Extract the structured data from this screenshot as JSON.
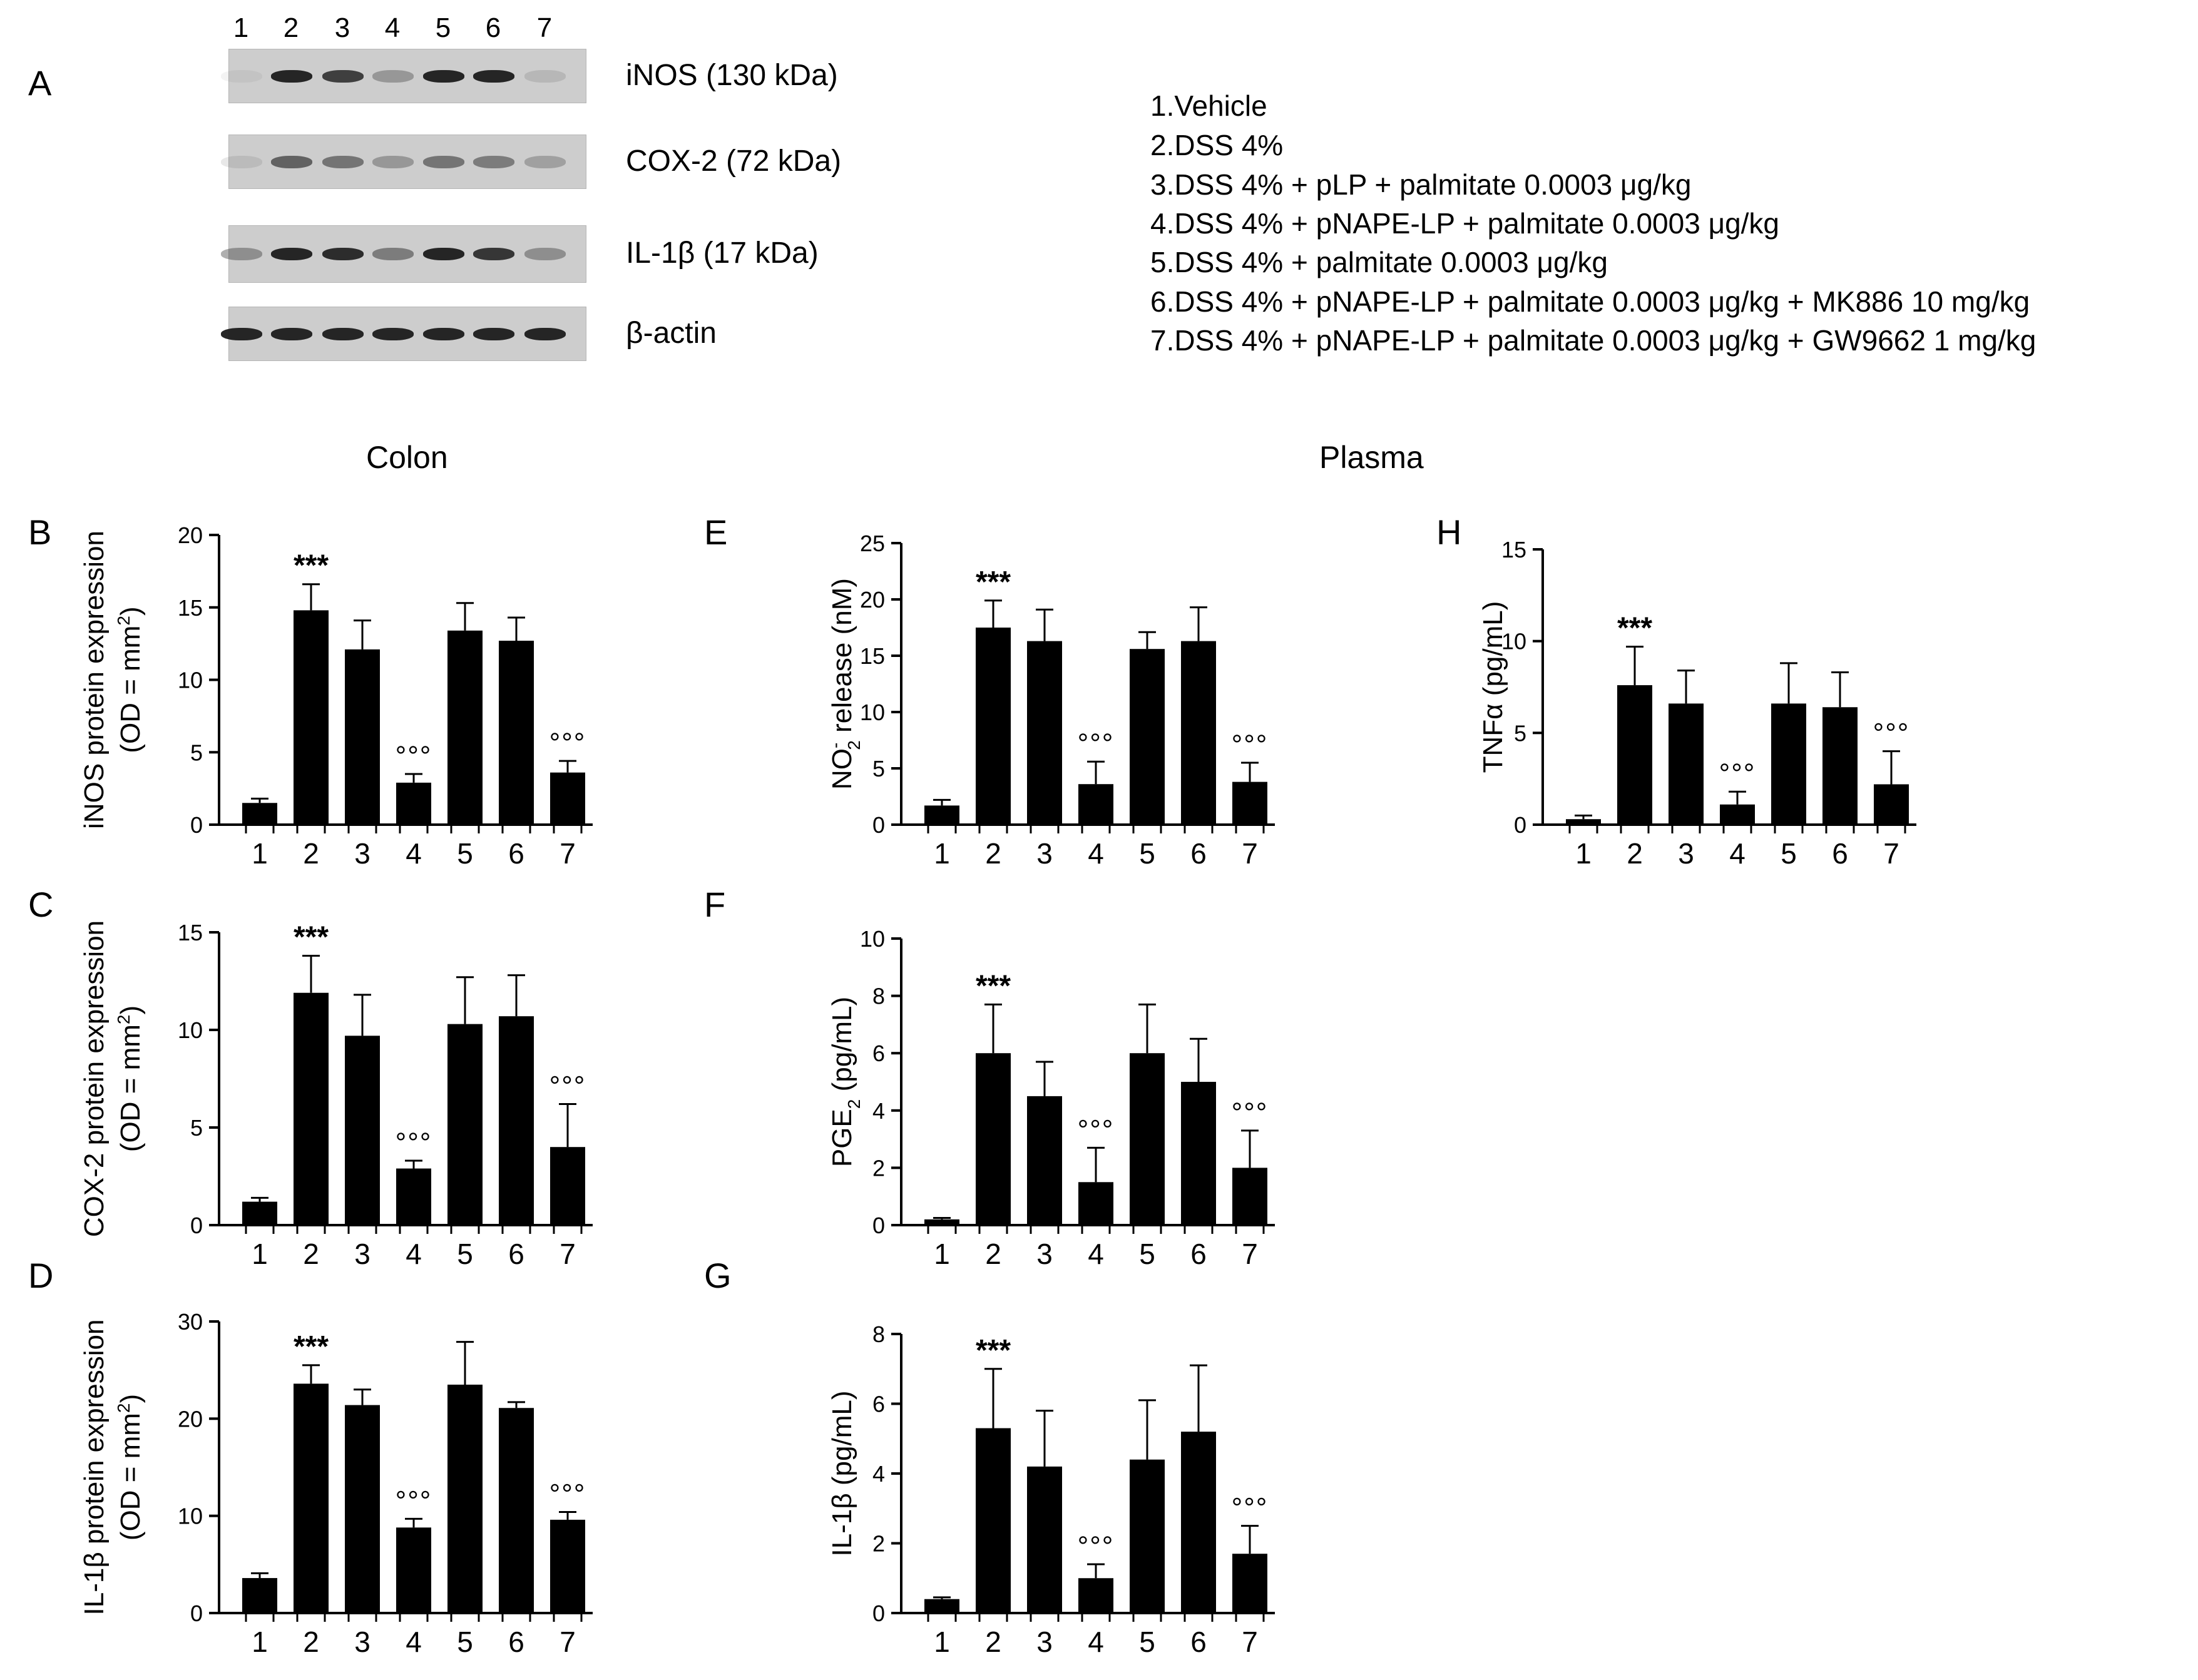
{
  "panel_a": {
    "letter": "A",
    "lanes": [
      "1",
      "2",
      "3",
      "4",
      "5",
      "6",
      "7"
    ],
    "blots": [
      {
        "label": "iNOS (130 kDa)",
        "intensity": [
          0.05,
          0.95,
          0.8,
          0.3,
          0.95,
          0.95,
          0.12
        ]
      },
      {
        "label": "COX-2 (72 kDa)",
        "intensity": [
          0.1,
          0.6,
          0.5,
          0.3,
          0.5,
          0.45,
          0.25
        ]
      },
      {
        "label": "IL-1β (17 kDa)",
        "intensity": [
          0.35,
          0.95,
          0.9,
          0.45,
          0.95,
          0.85,
          0.35
        ]
      },
      {
        "label": "β-actin",
        "intensity": [
          0.95,
          0.95,
          0.95,
          0.95,
          0.95,
          0.95,
          0.95
        ]
      }
    ],
    "legend": [
      "1.Vehicle",
      "2.DSS 4%",
      "3.DSS 4%  + pLP + palmitate 0.0003 μg/kg",
      "4.DSS 4%  + pNAPE-LP + palmitate 0.0003 μg/kg",
      "5.DSS 4%  + palmitate 0.0003 μg/kg",
      "6.DSS 4%  + pNAPE-LP + palmitate 0.0003 μg/kg + MK886  10 mg/kg",
      "7.DSS 4%  + pNAPE-LP + palmitate 0.0003 μg/kg + GW9662 1 mg/kg"
    ]
  },
  "sections": {
    "colon": "Colon",
    "plasma": "Plasma"
  },
  "chart_data": [
    {
      "panel": "B",
      "type": "bar",
      "categories": [
        "1",
        "2",
        "3",
        "4",
        "5",
        "6",
        "7"
      ],
      "values": [
        1.5,
        14.8,
        12.1,
        2.9,
        13.4,
        12.7,
        3.6
      ],
      "errors": [
        0.3,
        1.8,
        2.0,
        0.6,
        1.9,
        1.6,
        0.8
      ],
      "annotations": [
        "",
        "***",
        "",
        "°°°",
        "",
        "",
        "°°°"
      ],
      "ylabel_line1": "iNOS protein expression",
      "ylabel_line2": "(OD = mm",
      "ylabel_sup": "2",
      "ylabel_tail": ")",
      "ylim": [
        0,
        20
      ],
      "yticks": [
        0,
        5,
        10,
        15,
        20
      ]
    },
    {
      "panel": "C",
      "type": "bar",
      "categories": [
        "1",
        "2",
        "3",
        "4",
        "5",
        "6",
        "7"
      ],
      "values": [
        1.2,
        11.9,
        9.7,
        2.9,
        10.3,
        10.7,
        4.0
      ],
      "errors": [
        0.2,
        1.9,
        2.1,
        0.4,
        2.4,
        2.1,
        2.2
      ],
      "annotations": [
        "",
        "***",
        "",
        "°°°",
        "",
        "",
        "°°°"
      ],
      "ylabel_line1": "COX-2 protein expression",
      "ylabel_line2": "(OD = mm",
      "ylabel_sup": "2",
      "ylabel_tail": ")",
      "ylim": [
        0,
        15
      ],
      "yticks": [
        0,
        5,
        10,
        15
      ]
    },
    {
      "panel": "D",
      "type": "bar",
      "categories": [
        "1",
        "2",
        "3",
        "4",
        "5",
        "6",
        "7"
      ],
      "values": [
        3.6,
        23.6,
        21.4,
        8.8,
        23.5,
        21.1,
        9.6
      ],
      "errors": [
        0.5,
        1.9,
        1.6,
        0.9,
        4.4,
        0.6,
        0.8
      ],
      "annotations": [
        "",
        "***",
        "",
        "°°°",
        "",
        "",
        "°°°"
      ],
      "ylabel_line1": "IL-1β protein expression",
      "ylabel_line2": "(OD = mm",
      "ylabel_sup": "2",
      "ylabel_tail": ")",
      "ylim": [
        0,
        30
      ],
      "yticks": [
        0,
        10,
        20,
        30
      ]
    },
    {
      "panel": "E",
      "type": "bar",
      "categories": [
        "1",
        "2",
        "3",
        "4",
        "5",
        "6",
        "7"
      ],
      "values": [
        1.7,
        17.5,
        16.3,
        3.6,
        15.6,
        16.3,
        3.8
      ],
      "errors": [
        0.5,
        2.4,
        2.8,
        2.0,
        1.5,
        3.0,
        1.7
      ],
      "annotations": [
        "",
        "***",
        "",
        "°°°",
        "",
        "",
        "°°°"
      ],
      "ylabel_line1": "NO",
      "ylabel_sub": "2",
      "ylabel_supm": "-",
      "ylabel_tail": " release (nM)",
      "ylim": [
        0,
        25
      ],
      "yticks": [
        0,
        5,
        10,
        15,
        20,
        25
      ]
    },
    {
      "panel": "F",
      "type": "bar",
      "categories": [
        "1",
        "2",
        "3",
        "4",
        "5",
        "6",
        "7"
      ],
      "values": [
        0.2,
        6.0,
        4.5,
        1.5,
        6.0,
        5.0,
        2.0
      ],
      "errors": [
        0.05,
        1.7,
        1.2,
        1.2,
        1.7,
        1.5,
        1.3
      ],
      "annotations": [
        "",
        "***",
        "",
        "°°°",
        "",
        "",
        "°°°"
      ],
      "ylabel_line1": "PGE",
      "ylabel_sub": "2",
      "ylabel_tail": " (pg/mL)",
      "ylim": [
        0,
        10
      ],
      "yticks": [
        0,
        2,
        4,
        6,
        8,
        10
      ]
    },
    {
      "panel": "G",
      "type": "bar",
      "categories": [
        "1",
        "2",
        "3",
        "4",
        "5",
        "6",
        "7"
      ],
      "values": [
        0.4,
        5.3,
        4.2,
        1.0,
        4.4,
        5.2,
        1.7
      ],
      "errors": [
        0.05,
        1.7,
        1.6,
        0.4,
        1.7,
        1.9,
        0.8
      ],
      "annotations": [
        "",
        "***",
        "",
        "°°°",
        "",
        "",
        "°°°"
      ],
      "ylabel_line1": "IL-1β (pg/mL)",
      "ylim": [
        0,
        8
      ],
      "yticks": [
        0,
        2,
        4,
        6,
        8
      ]
    },
    {
      "panel": "H",
      "type": "bar",
      "categories": [
        "1",
        "2",
        "3",
        "4",
        "5",
        "6",
        "7"
      ],
      "values": [
        0.3,
        7.6,
        6.6,
        1.1,
        6.6,
        6.4,
        2.2
      ],
      "errors": [
        0.2,
        2.1,
        1.8,
        0.7,
        2.2,
        1.9,
        1.8
      ],
      "annotations": [
        "",
        "***",
        "",
        "°°°",
        "",
        "",
        "°°°"
      ],
      "ylabel_line1": "TNFα (pg/mL)",
      "ylim": [
        0,
        15
      ],
      "yticks": [
        0,
        5,
        10,
        15
      ]
    }
  ]
}
